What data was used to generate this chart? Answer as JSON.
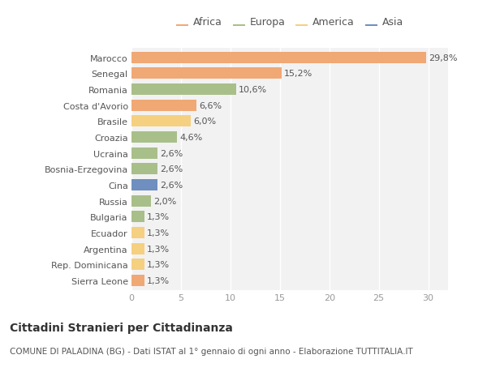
{
  "countries": [
    "Marocco",
    "Senegal",
    "Romania",
    "Costa d'Avorio",
    "Brasile",
    "Croazia",
    "Ucraina",
    "Bosnia-Erzegovina",
    "Cina",
    "Russia",
    "Bulgaria",
    "Ecuador",
    "Argentina",
    "Rep. Dominicana",
    "Sierra Leone"
  ],
  "values": [
    29.8,
    15.2,
    10.6,
    6.6,
    6.0,
    4.6,
    2.6,
    2.6,
    2.6,
    2.0,
    1.3,
    1.3,
    1.3,
    1.3,
    1.3
  ],
  "labels": [
    "29,8%",
    "15,2%",
    "10,6%",
    "6,6%",
    "6,0%",
    "4,6%",
    "2,6%",
    "2,6%",
    "2,6%",
    "2,0%",
    "1,3%",
    "1,3%",
    "1,3%",
    "1,3%",
    "1,3%"
  ],
  "colors": [
    "#F0A875",
    "#F0A875",
    "#A8BF8A",
    "#F0A875",
    "#F5D080",
    "#A8BF8A",
    "#A8BF8A",
    "#A8BF8A",
    "#6E8FBF",
    "#A8BF8A",
    "#A8BF8A",
    "#F5D080",
    "#F5D080",
    "#F5D080",
    "#F0A875"
  ],
  "continent_labels": [
    "Africa",
    "Europa",
    "America",
    "Asia"
  ],
  "continent_colors": [
    "#F0A875",
    "#A8BF8A",
    "#F5D080",
    "#6E8FBF"
  ],
  "title": "Cittadini Stranieri per Cittadinanza",
  "subtitle": "COMUNE DI PALADINA (BG) - Dati ISTAT al 1° gennaio di ogni anno - Elaborazione TUTTITALIA.IT",
  "xlim": [
    0,
    32
  ],
  "xticks": [
    0,
    5,
    10,
    15,
    20,
    25,
    30
  ],
  "bg_color": "#FFFFFF",
  "plot_bg_color": "#F2F2F2",
  "grid_color": "#FFFFFF",
  "bar_height": 0.72,
  "title_fontsize": 10,
  "subtitle_fontsize": 7.5,
  "label_fontsize": 8,
  "tick_fontsize": 8,
  "legend_fontsize": 9
}
